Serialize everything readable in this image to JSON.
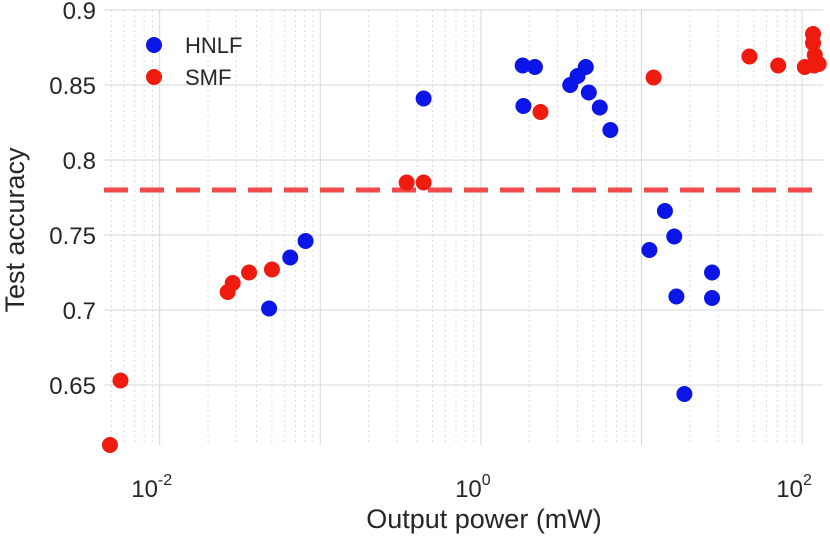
{
  "chart_data": {
    "type": "scatter",
    "xscale": "log",
    "xlabel": "Output power (mW)",
    "ylabel": "Test accuracy",
    "xlim": [
      0.0045,
      135
    ],
    "ylim": [
      0.61,
      0.9
    ],
    "xticks": [
      {
        "value": 0.01,
        "base": "10",
        "exp": "-2"
      },
      {
        "value": 1,
        "base": "10",
        "exp": "0"
      },
      {
        "value": 100,
        "base": "10",
        "exp": "2"
      }
    ],
    "yticks": [
      {
        "value": 0.65,
        "label": "0.65"
      },
      {
        "value": 0.7,
        "label": "0.7"
      },
      {
        "value": 0.75,
        "label": "0.75"
      },
      {
        "value": 0.8,
        "label": "0.8"
      },
      {
        "value": 0.85,
        "label": "0.85"
      },
      {
        "value": 0.9,
        "label": "0.9"
      }
    ],
    "grid": true,
    "reference_line": {
      "y": 0.78,
      "color": "#f04a4a",
      "style": "dashed"
    },
    "legend_position": "top-left",
    "series": [
      {
        "name": "HNLF",
        "color": "#0b16e6",
        "points": [
          {
            "x": 0.048,
            "y": 0.701
          },
          {
            "x": 0.065,
            "y": 0.735
          },
          {
            "x": 0.081,
            "y": 0.746
          },
          {
            "x": 0.44,
            "y": 0.841
          },
          {
            "x": 1.82,
            "y": 0.863
          },
          {
            "x": 1.84,
            "y": 0.836
          },
          {
            "x": 2.17,
            "y": 0.862
          },
          {
            "x": 3.6,
            "y": 0.85
          },
          {
            "x": 4.0,
            "y": 0.856
          },
          {
            "x": 4.5,
            "y": 0.862
          },
          {
            "x": 4.7,
            "y": 0.845
          },
          {
            "x": 5.5,
            "y": 0.835
          },
          {
            "x": 6.4,
            "y": 0.82
          },
          {
            "x": 14.0,
            "y": 0.766
          },
          {
            "x": 11.2,
            "y": 0.74
          },
          {
            "x": 16.0,
            "y": 0.749
          },
          {
            "x": 16.5,
            "y": 0.709
          },
          {
            "x": 18.5,
            "y": 0.644
          },
          {
            "x": 27.5,
            "y": 0.725
          },
          {
            "x": 27.5,
            "y": 0.708
          }
        ]
      },
      {
        "name": "SMF",
        "color": "#ee1b0e",
        "points": [
          {
            "x": 0.0049,
            "y": 0.61
          },
          {
            "x": 0.0057,
            "y": 0.653
          },
          {
            "x": 0.0265,
            "y": 0.712
          },
          {
            "x": 0.0285,
            "y": 0.718
          },
          {
            "x": 0.036,
            "y": 0.725
          },
          {
            "x": 0.05,
            "y": 0.727
          },
          {
            "x": 0.345,
            "y": 0.785
          },
          {
            "x": 0.44,
            "y": 0.785
          },
          {
            "x": 2.35,
            "y": 0.832
          },
          {
            "x": 11.9,
            "y": 0.855
          },
          {
            "x": 47.0,
            "y": 0.869
          },
          {
            "x": 71.0,
            "y": 0.863
          },
          {
            "x": 104.0,
            "y": 0.862
          },
          {
            "x": 117.0,
            "y": 0.884
          },
          {
            "x": 117.0,
            "y": 0.878
          },
          {
            "x": 120.0,
            "y": 0.87
          },
          {
            "x": 119.0,
            "y": 0.863
          },
          {
            "x": 127.0,
            "y": 0.864
          }
        ]
      }
    ]
  }
}
